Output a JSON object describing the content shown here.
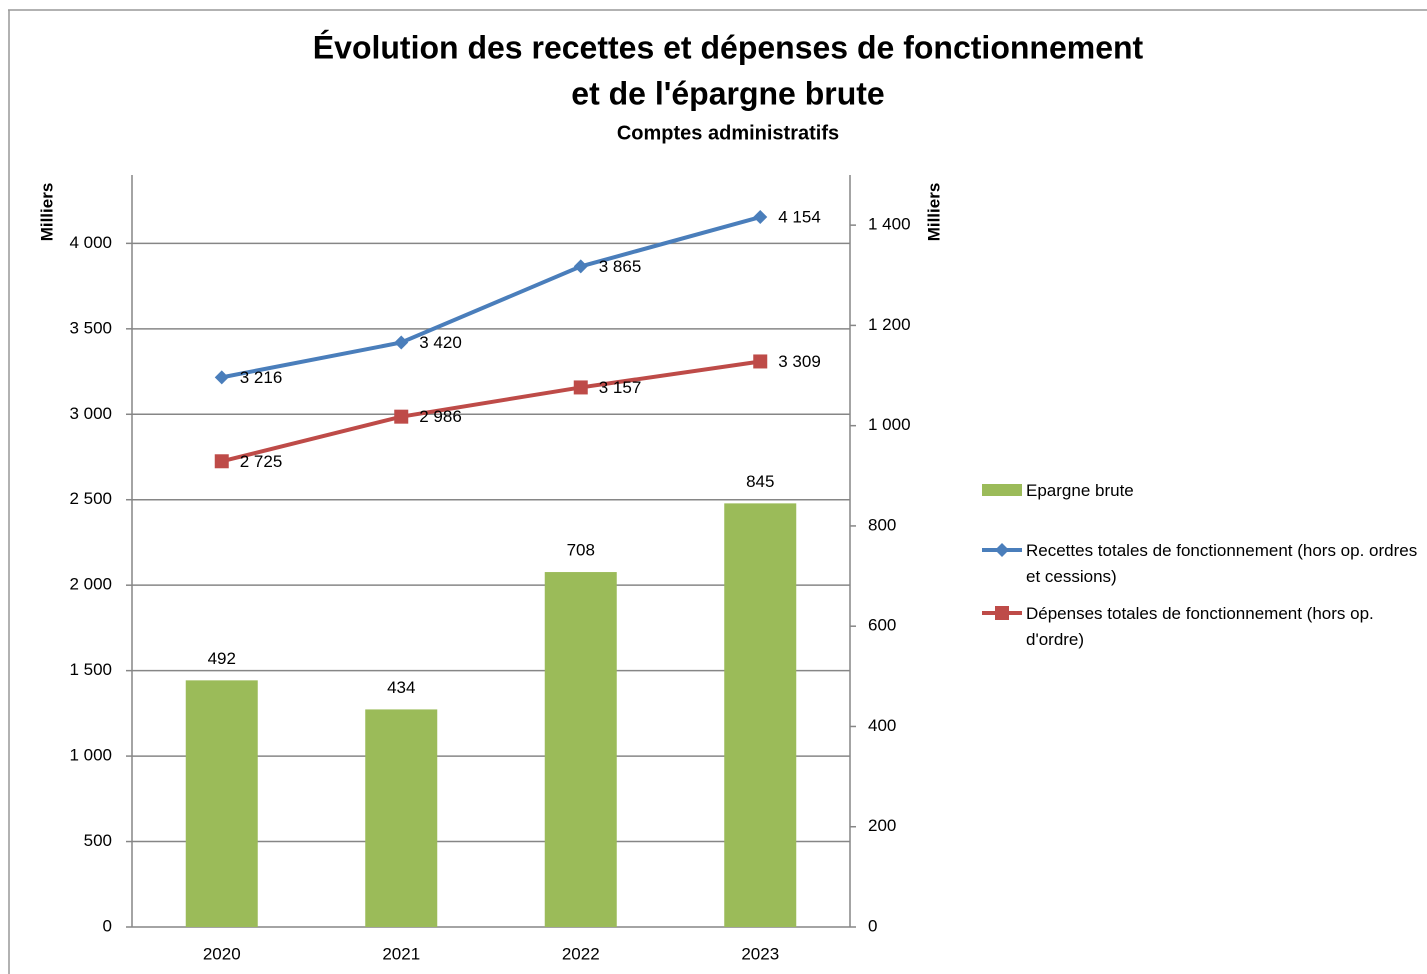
{
  "chart_data": {
    "type": "bar-line",
    "title": [
      "Évolution des recettes et dépenses de fonctionnement",
      "et de l'épargne brute"
    ],
    "subtitle": "Comptes administratifs",
    "y_label": "Milliers",
    "y2_label": "Milliers",
    "categories": [
      "2020",
      "2021",
      "2022",
      "2023"
    ],
    "ylim": [
      0,
      4400
    ],
    "yticks": [
      0,
      500,
      {
        "value": 1000,
        "label": "1 000"
      },
      {
        "value": 1500,
        "label": "1 500"
      },
      {
        "value": 2000,
        "label": "2 000"
      },
      {
        "value": 2500,
        "label": "2 500"
      },
      {
        "value": 3000,
        "label": "3 000"
      },
      {
        "value": 3500,
        "label": "3 500"
      },
      {
        "value": 4000,
        "label": "4 000"
      }
    ],
    "y2lim": [
      0,
      1500
    ],
    "y2ticks": [
      0,
      200,
      400,
      600,
      800,
      {
        "value": 1000,
        "label": "1 000"
      },
      {
        "value": 1200,
        "label": "1 200"
      },
      {
        "value": 1400,
        "label": "1 400"
      }
    ],
    "grid": true,
    "legend": "right",
    "series": [
      {
        "name": "Epargne brute",
        "type": "bar",
        "axis": "y2",
        "color": "#9bbb59",
        "values": [
          492,
          434,
          708,
          845
        ]
      },
      {
        "name": "Recettes totales de fonctionnement (hors op. ordres et cessions)",
        "type": "line",
        "marker": "diamond",
        "color": "#4a7ebb",
        "values": [
          3216,
          3420,
          3865,
          4154
        ],
        "value_labels": [
          "3 216",
          "3 420",
          "3 865",
          "4 154"
        ]
      },
      {
        "name": "Dépenses totales de fonctionnement (hors op. d'ordre)",
        "type": "line",
        "marker": "square",
        "color": "#be4b48",
        "values": [
          2725,
          2986,
          3157,
          3309
        ],
        "value_labels": [
          "2 725",
          "2 986",
          "3 157",
          "3 309"
        ]
      }
    ]
  }
}
